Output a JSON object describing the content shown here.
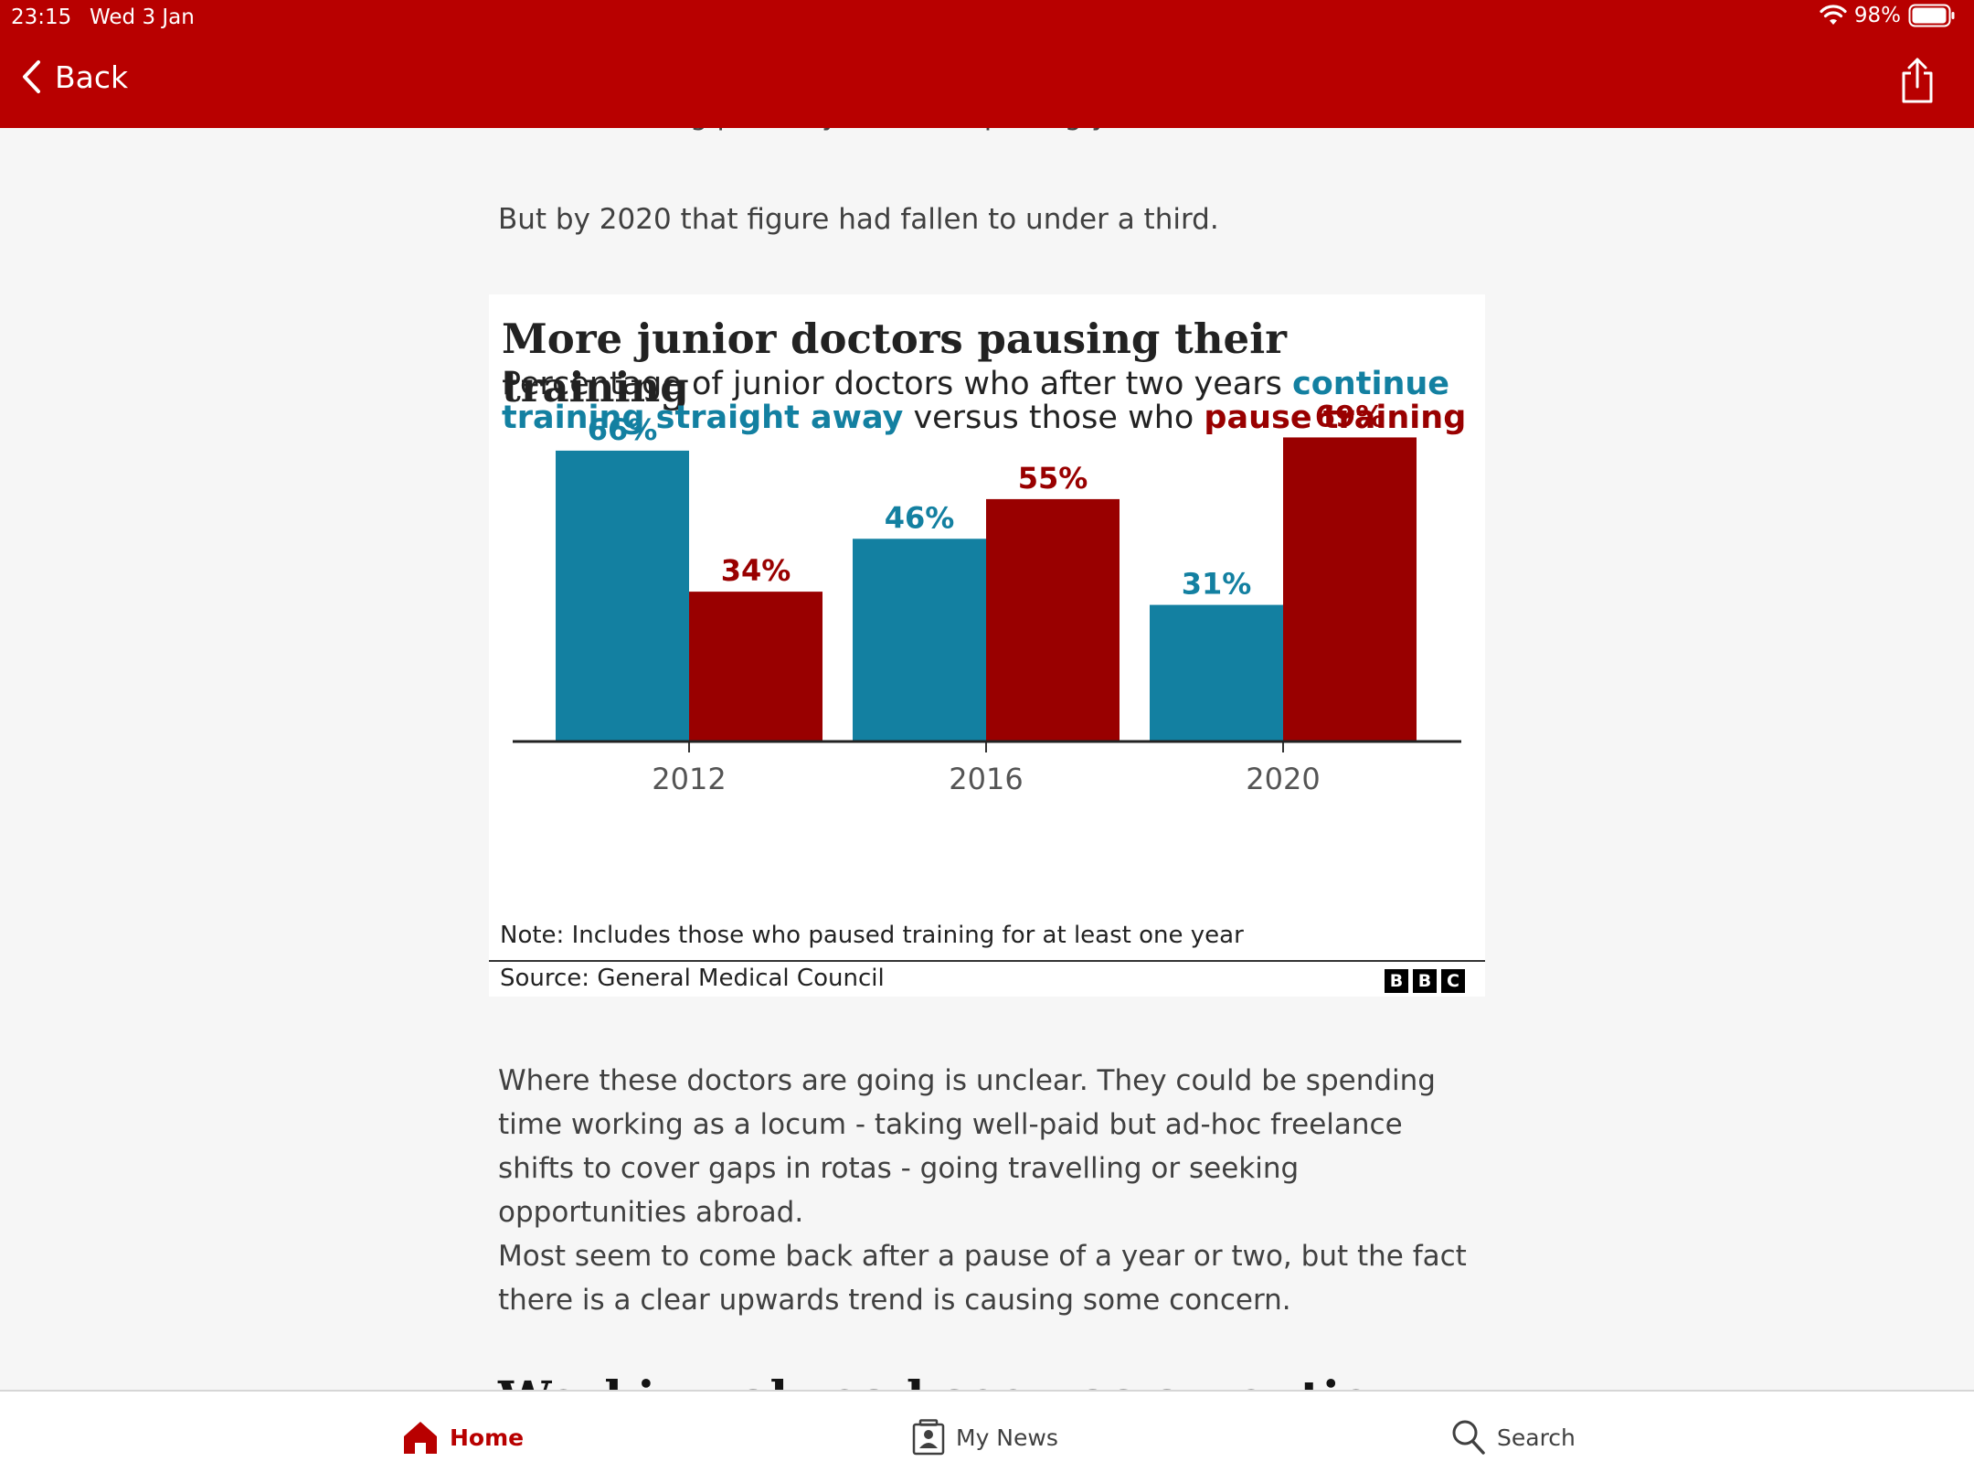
{
  "status_bar": {
    "time": "23:15",
    "date": "Wed 3 Jan",
    "battery": "98%"
  },
  "header": {
    "back_label": "Back",
    "share_icon": "share-icon"
  },
  "article": {
    "cutoff_text": "doctor training pathway after completing year two.",
    "para1": "But by 2020 that figure had fallen to under a third.",
    "para2": "Where these doctors are going is unclear. They could be spending time working as a locum - taking well-paid but ad-hoc freelance shifts to cover gaps in rotas - going travelling or seeking opportunities abroad.",
    "para3": "Most seem to come back after a pause of a year or two, but the fact there is a clear upwards trend is causing some concern.",
    "next_heading_cut": "Working abroad seen as an option"
  },
  "chart": {
    "title": "More junior doctors pausing their training",
    "subtitle_part1": "Percentage of junior doctors who after two years ",
    "subtitle_blue": "continue training straight away",
    "subtitle_part2": " versus those who ",
    "subtitle_red": "pause training",
    "note": "Note: Includes those who paused training for at least one year",
    "source": "Source: General Medical Council",
    "logo_letters": [
      "B",
      "B",
      "C"
    ]
  },
  "chart_data": {
    "type": "bar",
    "title": "More junior doctors pausing their training",
    "categories": [
      "2012",
      "2016",
      "2020"
    ],
    "series": [
      {
        "name": "continue training straight away",
        "color": "#1380a1",
        "values": [
          66,
          46,
          31
        ],
        "labels": [
          "66%",
          "46%",
          "31%"
        ]
      },
      {
        "name": "pause training",
        "color": "#990000",
        "values": [
          34,
          55,
          69
        ],
        "labels": [
          "34%",
          "55%",
          "69%"
        ]
      }
    ],
    "ylim": [
      0,
      100
    ],
    "grid": false,
    "legend": "none"
  },
  "bottom_nav": {
    "home": "Home",
    "my_news": "My News",
    "search": "Search"
  },
  "colors": {
    "brand_red": "#b80000",
    "series_blue": "#1380a1",
    "series_red": "#990000"
  }
}
